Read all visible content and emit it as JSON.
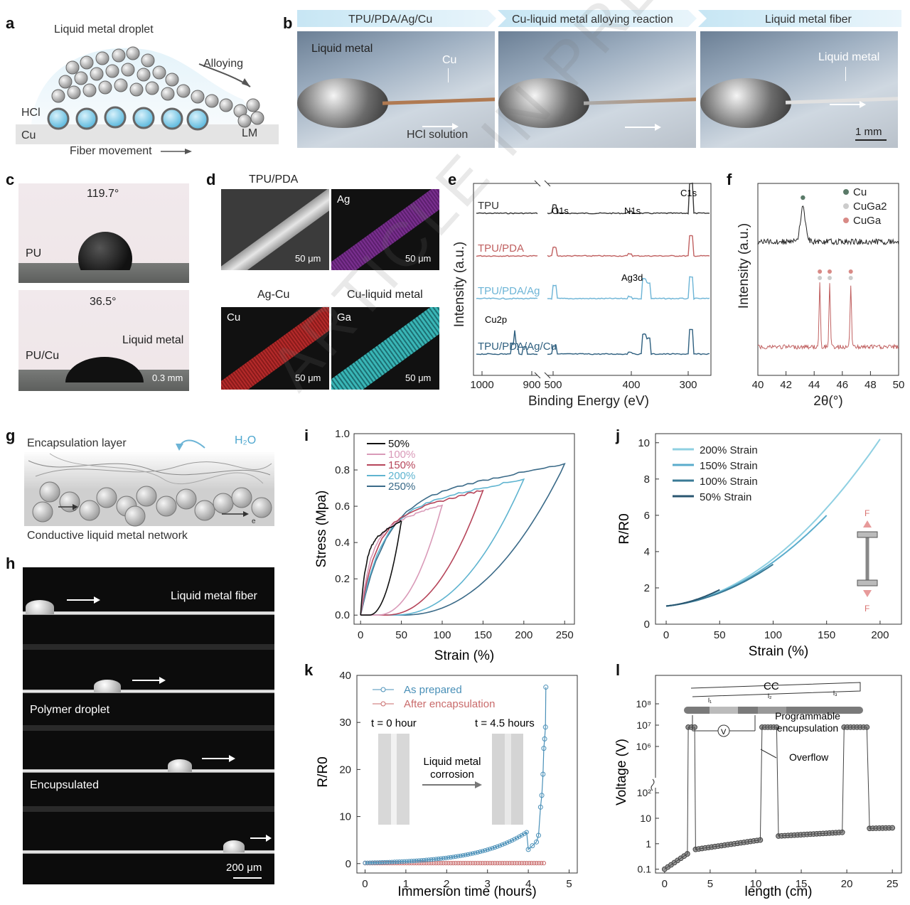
{
  "labels": {
    "a": "a",
    "b": "b",
    "c": "c",
    "d": "d",
    "e": "e",
    "f": "f",
    "g": "g",
    "h": "h",
    "i": "i",
    "j": "j",
    "k": "k",
    "l": "l"
  },
  "watermark": "ARTICLE IN PRESS",
  "panel_a": {
    "droplet": "Liquid metal droplet",
    "alloying": "Alloying",
    "hcl": "HCl",
    "cu": "Cu",
    "lm": "LM",
    "movement": "Fiber movement"
  },
  "panel_b": {
    "step1": "TPU/PDA/Ag/Cu",
    "step2": "Cu-liquid metal alloying reaction",
    "step3": "Liquid metal fiber",
    "liquid_metal": "Liquid metal",
    "cu": "Cu",
    "hcl": "HCl solution",
    "lm2": "Liquid metal",
    "scale": "1 mm"
  },
  "panel_c": {
    "angle1": "119.7°",
    "pu": "PU",
    "angle2": "36.5°",
    "pucu": "PU/Cu",
    "lm": "Liquid metal",
    "scale": "0.3 mm"
  },
  "panel_d": {
    "h1": "TPU/PDA",
    "h2": "Ag-Cu",
    "h3": "Cu-liquid metal",
    "ag": "Ag",
    "cu": "Cu",
    "ga": "Ga",
    "scale": "50 μm"
  },
  "chart_data": [
    {
      "panel": "e",
      "type": "line",
      "xlabel": "Binding Energy (eV)",
      "ylabel": "Intensity (a.u.)",
      "xticks": [
        "1000",
        "900",
        "500",
        "400",
        "300"
      ],
      "series": [
        {
          "name": "TPU",
          "color": "#333333"
        },
        {
          "name": "TPU/PDA",
          "color": "#c06060"
        },
        {
          "name": "TPU/PDA/Ag",
          "color": "#6cb4d6"
        },
        {
          "name": "TPU/PDA/Ag/Cu",
          "color": "#2e5f7f"
        }
      ],
      "annotations": [
        "C1s",
        "O1s",
        "N1s",
        "Ag3d",
        "Cu2p"
      ]
    },
    {
      "panel": "f",
      "type": "line",
      "xlabel": "2θ(°)",
      "ylabel": "Intensity (a.u.)",
      "xlim": [
        40,
        50
      ],
      "xticks": [
        "40",
        "42",
        "44",
        "46",
        "48",
        "50"
      ],
      "legend": [
        {
          "name": "Cu",
          "color": "#5a7a68"
        },
        {
          "name": "CuGa2",
          "color": "#cccccc"
        },
        {
          "name": "CuGa",
          "color": "#d88a86"
        }
      ],
      "peaks_black": [
        43.2
      ],
      "peaks_red": [
        44.4,
        45.1,
        46.6
      ]
    },
    {
      "panel": "i",
      "type": "line",
      "xlabel": "Strain (%)",
      "ylabel": "Stress (Mpa)",
      "xlim": [
        0,
        250
      ],
      "ylim": [
        0,
        1.0
      ],
      "xticks": [
        "0",
        "50",
        "100",
        "150",
        "200",
        "250"
      ],
      "yticks": [
        "0.0",
        "0.2",
        "0.4",
        "0.6",
        "0.8",
        "1.0"
      ],
      "series": [
        {
          "name": "50%",
          "max_strain": 50,
          "max_stress": 0.52,
          "color": "#111111"
        },
        {
          "name": "100%",
          "max_strain": 100,
          "max_stress": 0.61,
          "color": "#d99ab8"
        },
        {
          "name": "150%",
          "max_strain": 150,
          "max_stress": 0.69,
          "color": "#b6455a"
        },
        {
          "name": "200%",
          "max_strain": 200,
          "max_stress": 0.75,
          "color": "#5fb4d0"
        },
        {
          "name": "250%",
          "max_strain": 250,
          "max_stress": 0.83,
          "color": "#3a6a88"
        }
      ]
    },
    {
      "panel": "j",
      "type": "line",
      "xlabel": "Strain (%)",
      "ylabel": "R/R0",
      "xlim": [
        0,
        200
      ],
      "ylim": [
        0,
        10
      ],
      "xticks": [
        "0",
        "50",
        "100",
        "150",
        "200"
      ],
      "yticks": [
        "0",
        "2",
        "4",
        "6",
        "8",
        "10"
      ],
      "series": [
        {
          "name": "200% Strain",
          "max_strain": 200,
          "max_r": 10.2,
          "color": "#8fd0e2"
        },
        {
          "name": "150% Strain",
          "max_strain": 150,
          "max_r": 6.0,
          "color": "#5aaccc"
        },
        {
          "name": "100% Strain",
          "max_strain": 100,
          "max_r": 3.3,
          "color": "#3a7a96"
        },
        {
          "name": "50% Strain",
          "max_strain": 50,
          "max_r": 1.9,
          "color": "#2a5670"
        }
      ],
      "force": "F"
    },
    {
      "panel": "k",
      "type": "scatter",
      "xlabel": "Immersion time (hours)",
      "ylabel": "R/R0",
      "xlim": [
        0,
        5
      ],
      "ylim": [
        0,
        40
      ],
      "xticks": [
        "0",
        "1",
        "2",
        "3",
        "4",
        "5"
      ],
      "yticks": [
        "0",
        "10",
        "20",
        "30",
        "40"
      ],
      "series": [
        {
          "name": "As prepared",
          "color": "#4a90b8",
          "x": [
            4.0,
            4.1,
            4.2,
            4.25,
            4.3,
            4.33,
            4.36,
            4.38,
            4.4,
            4.42,
            4.43
          ],
          "y": [
            3.0,
            3.8,
            4.6,
            6.0,
            12.0,
            14.5,
            19.0,
            24.5,
            26.5,
            29.0,
            37.5
          ]
        },
        {
          "name": "After encapsulation",
          "color": "#c96b6b",
          "value": 0.1
        }
      ],
      "labels": {
        "t0": "t = 0 hour",
        "t45": "t = 4.5 hours",
        "corrosion": "Liquid metal\ncorrosion"
      }
    },
    {
      "panel": "l",
      "type": "scatter",
      "xlabel": "length (cm)",
      "ylabel": "Voltage (V)",
      "xticks": [
        "0",
        "5",
        "10",
        "15",
        "20",
        "25"
      ],
      "yticks": [
        "0.1",
        "1",
        "10",
        "10²",
        "10⁶",
        "10⁷",
        "10⁸"
      ],
      "labels": {
        "cc": "CC",
        "prog": "Programmable\nencupsulation",
        "overflow": "Overflow",
        "v": "V",
        "l1": "l₁",
        "l2": "l₂",
        "l3": "l₃"
      },
      "segments": [
        {
          "x_from": 0,
          "x_to": 2.5,
          "v_from": 0.1,
          "v_to": 0.4
        },
        {
          "x_from": 3.4,
          "x_to": 10.5,
          "v_from": 0.6,
          "v_to": 1.4
        },
        {
          "x_from": 12.5,
          "x_to": 19.5,
          "v_from": 2.0,
          "v_to": 2.8
        },
        {
          "x_from": 22.5,
          "x_to": 25,
          "v_from": 4.0,
          "v_to": 4.2
        }
      ],
      "high_plateaus": [
        {
          "x_from": 2.6,
          "x_to": 3.3,
          "v": 8000000.0
        },
        {
          "x_from": 10.7,
          "x_to": 12.3,
          "v": 8000000.0
        },
        {
          "x_from": 19.7,
          "x_to": 22.2,
          "v": 8000000.0
        }
      ]
    }
  ],
  "panel_g": {
    "encap": "Encapsulation layer",
    "h2o": "H₂O",
    "network": "Conductive liquid metal network",
    "e": "e"
  },
  "panel_h": {
    "t1": "Liquid metal fiber",
    "t2": "Polymer droplet",
    "t3": "Encupsulated",
    "scale": "200 μm"
  }
}
